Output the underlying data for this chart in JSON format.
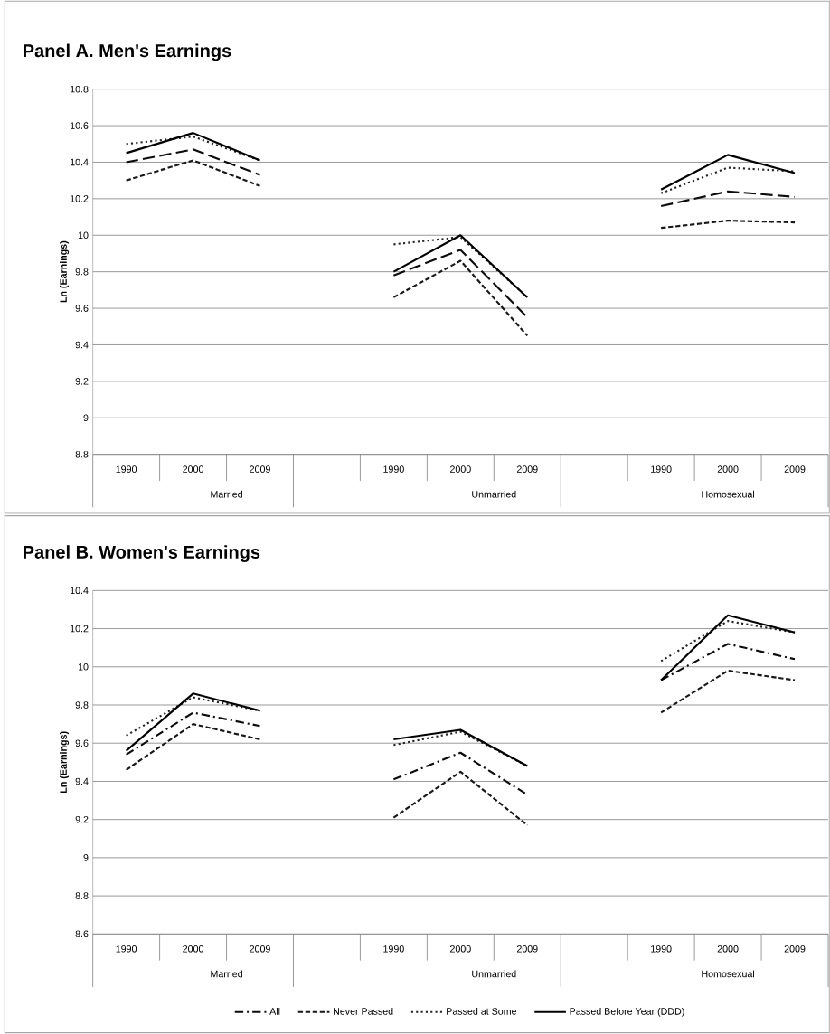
{
  "chart_data": [
    {
      "type": "line",
      "title": "Panel A. Men's Earnings",
      "ylabel": "Ln (Earnings)",
      "categories": [
        "1990",
        "2000",
        "2009",
        null,
        "1990",
        "2000",
        "2009",
        null,
        "1990",
        "2000",
        "2009"
      ],
      "annotations": [
        "Married",
        "Unmarried",
        "Homosexual"
      ],
      "ylim": [
        8.8,
        10.8
      ],
      "yticks": [
        8.8,
        9,
        9.2,
        9.4,
        9.6,
        9.8,
        10,
        10.2,
        10.4,
        10.6,
        10.8
      ],
      "grid": "y",
      "marker": "none",
      "series": [
        {
          "color": "#0c0c0c",
          "line_style": "longdash",
          "values": [
            10.4,
            10.47,
            10.33,
            null,
            9.78,
            9.92,
            9.55,
            null,
            10.16,
            10.24,
            10.21
          ]
        },
        {
          "color": "#181818",
          "line_style": "dashed",
          "values": [
            10.3,
            10.41,
            10.27,
            null,
            9.66,
            9.86,
            9.45,
            null,
            10.04,
            10.08,
            10.07
          ]
        },
        {
          "color": "#242424",
          "line_style": "dotted",
          "values": [
            10.5,
            10.54,
            10.41,
            null,
            9.95,
            9.99,
            9.66,
            null,
            10.23,
            10.37,
            10.35
          ]
        },
        {
          "color": "#000000",
          "line_style": "solid",
          "values": [
            10.45,
            10.56,
            10.41,
            null,
            9.8,
            10.0,
            9.66,
            null,
            10.25,
            10.44,
            10.34
          ]
        }
      ]
    },
    {
      "type": "line",
      "title": "Panel B. Women's Earnings",
      "ylabel": "Ln (Earnings)",
      "categories": [
        "1990",
        "2000",
        "2009",
        null,
        "1990",
        "2000",
        "2009",
        null,
        "1990",
        "2000",
        "2009"
      ],
      "annotations": [
        "Married",
        "Unmarried",
        "Homosexual"
      ],
      "ylim": [
        8.6,
        10.4
      ],
      "yticks": [
        8.6,
        8.8,
        9,
        9.2,
        9.4,
        9.6,
        9.8,
        10,
        10.2,
        10.4
      ],
      "grid": "y",
      "marker": "none",
      "legend": "bottom",
      "series": [
        {
          "name": "All",
          "color": "#0c0c0c",
          "line_style": "dashdot",
          "values": [
            9.54,
            9.76,
            9.69,
            null,
            9.41,
            9.55,
            9.33,
            null,
            9.93,
            10.12,
            10.04
          ]
        },
        {
          "name": "Never Passed",
          "color": "#181818",
          "line_style": "dashed",
          "values": [
            9.46,
            9.7,
            9.62,
            null,
            9.21,
            9.45,
            9.17,
            null,
            9.76,
            9.98,
            9.93
          ]
        },
        {
          "name": "Passed at Some",
          "color": "#242424",
          "line_style": "dotted",
          "values": [
            9.64,
            9.84,
            9.77,
            null,
            9.59,
            9.66,
            9.48,
            null,
            10.03,
            10.24,
            10.18
          ]
        },
        {
          "name": "Passed Before Year (DDD)",
          "color": "#000000",
          "line_style": "solid",
          "values": [
            9.56,
            9.86,
            9.77,
            null,
            9.62,
            9.67,
            9.48,
            null,
            9.93,
            10.27,
            10.18
          ]
        }
      ]
    }
  ]
}
